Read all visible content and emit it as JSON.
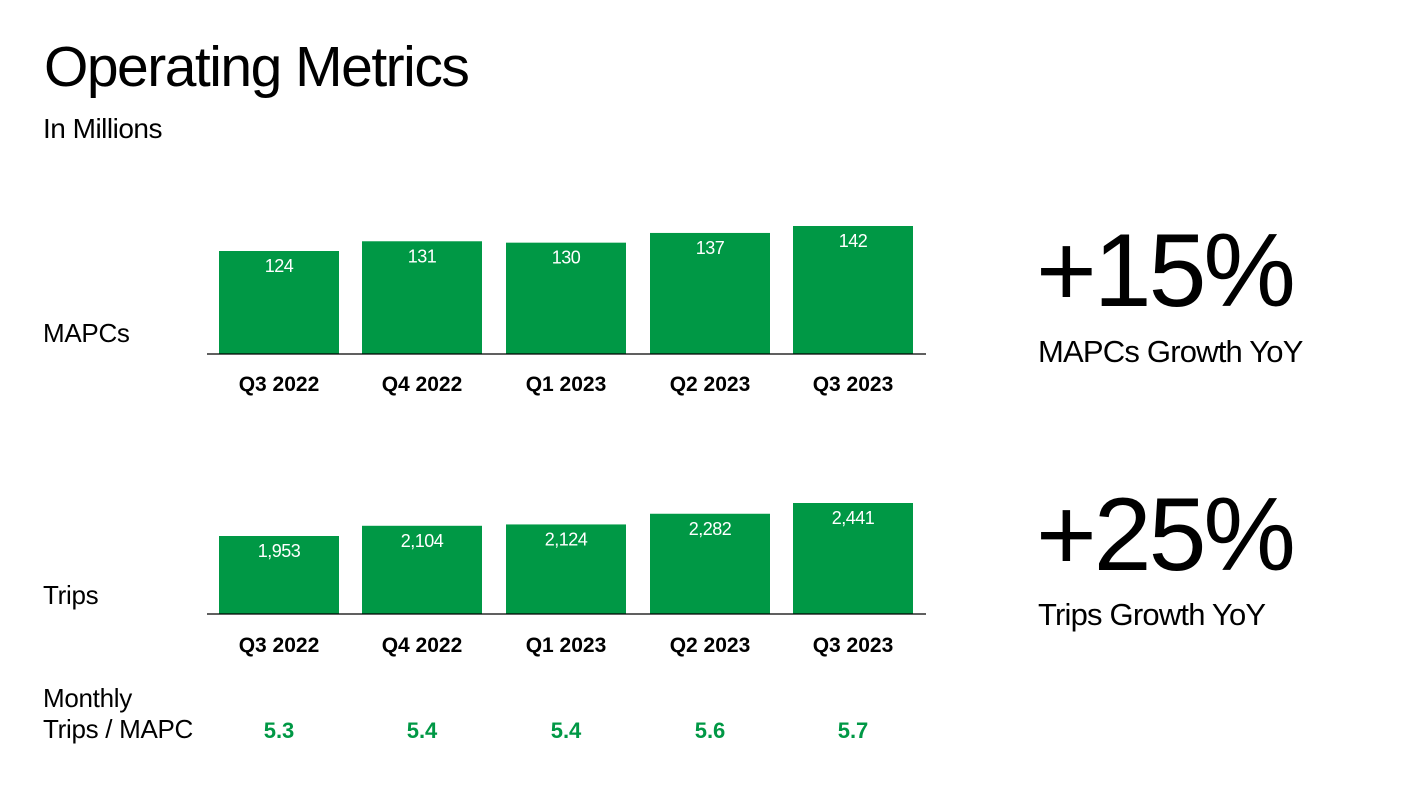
{
  "title": "Operating Metrics",
  "subtitle": "In Millions",
  "colors": {
    "bar": "#009845",
    "ratio_text": "#009845",
    "axis": "#000000",
    "bar_label": "#ffffff"
  },
  "chart_data": [
    {
      "type": "bar",
      "row_label": "MAPCs",
      "categories": [
        "Q3 2022",
        "Q4 2022",
        "Q1 2023",
        "Q2 2023",
        "Q3 2023"
      ],
      "values": [
        124,
        131,
        130,
        137,
        142
      ],
      "value_labels": [
        "124",
        "131",
        "130",
        "137",
        "142"
      ],
      "grid": false,
      "legend": "none"
    },
    {
      "type": "bar",
      "row_label": "Trips",
      "categories": [
        "Q3 2022",
        "Q4 2022",
        "Q1 2023",
        "Q2 2023",
        "Q3 2023"
      ],
      "values": [
        1953,
        2104,
        2124,
        2282,
        2441
      ],
      "value_labels": [
        "1,953",
        "2,104",
        "2,124",
        "2,282",
        "2,441"
      ],
      "grid": false,
      "legend": "none"
    }
  ],
  "ratio_row": {
    "label_line1": "Monthly",
    "label_line2": "Trips / MAPC",
    "values": [
      "5.3",
      "5.4",
      "5.4",
      "5.6",
      "5.7"
    ]
  },
  "highlights": [
    {
      "value": "+15%",
      "caption": "MAPCs Growth YoY"
    },
    {
      "value": "+25%",
      "caption": "Trips Growth YoY"
    }
  ]
}
